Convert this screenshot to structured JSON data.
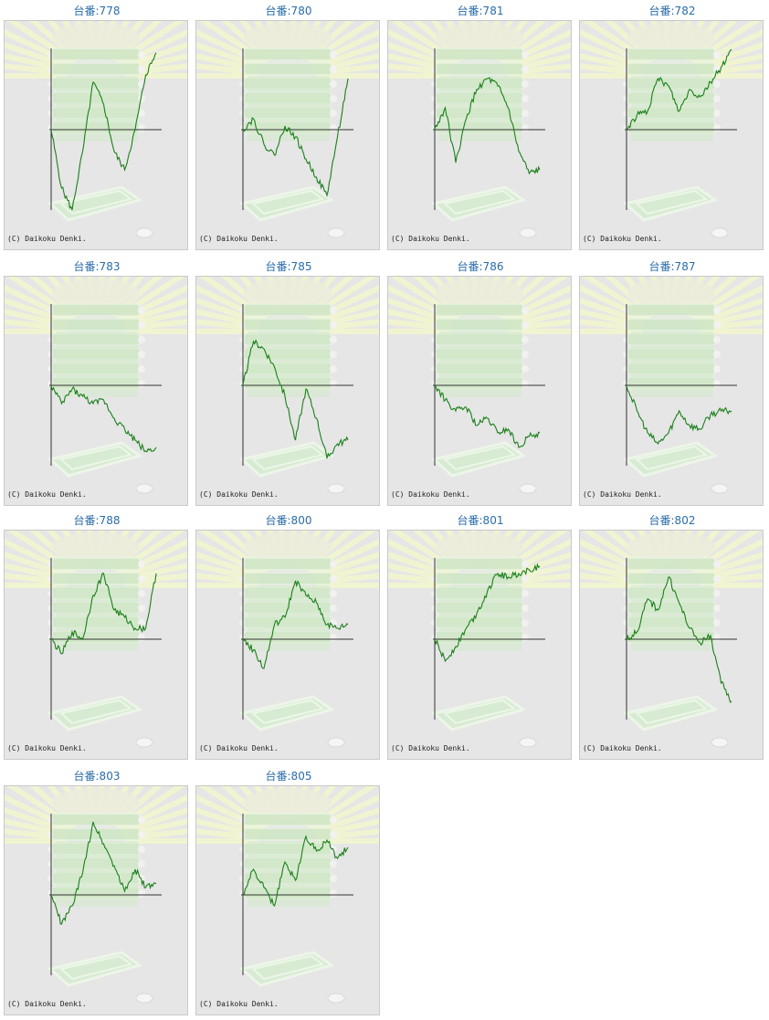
{
  "copyright": "(C) Daikoku Denki.",
  "colors": {
    "line": "#1a7f1a",
    "title": "#2a6ca8",
    "background": "#e6e6e6",
    "axis": "#333333"
  },
  "chart_data": [
    {
      "type": "line",
      "title": "台番:778",
      "x": [
        0,
        10,
        20,
        30,
        40,
        50,
        60,
        70,
        80,
        90,
        100
      ],
      "values": [
        0.0,
        -1.6,
        -2.2,
        -0.6,
        1.3,
        0.7,
        -0.6,
        -1.1,
        0.0,
        1.5,
        2.1
      ]
    },
    {
      "type": "line",
      "title": "台番:780",
      "x": [
        0,
        10,
        20,
        30,
        40,
        50,
        60,
        70,
        80,
        90,
        100
      ],
      "values": [
        0.0,
        0.3,
        -0.4,
        -0.7,
        0.1,
        -0.2,
        -0.8,
        -1.3,
        -1.8,
        -0.2,
        1.4
      ]
    },
    {
      "type": "line",
      "title": "台番:781",
      "x": [
        0,
        10,
        20,
        30,
        40,
        50,
        60,
        70,
        80,
        90,
        100
      ],
      "values": [
        0.0,
        0.6,
        -0.9,
        0.3,
        1.1,
        1.4,
        1.2,
        0.6,
        -0.6,
        -1.2,
        -1.1
      ]
    },
    {
      "type": "line",
      "title": "台番:782",
      "x": [
        0,
        10,
        20,
        30,
        40,
        50,
        60,
        70,
        80,
        90,
        100
      ],
      "values": [
        0.0,
        0.4,
        0.5,
        1.4,
        1.2,
        0.5,
        1.1,
        0.9,
        1.3,
        1.7,
        2.2
      ]
    },
    {
      "type": "line",
      "title": "台番:783",
      "x": [
        0,
        10,
        20,
        30,
        40,
        50,
        60,
        70,
        80,
        90,
        100
      ],
      "values": [
        0.0,
        -0.5,
        -0.1,
        -0.3,
        -0.5,
        -0.4,
        -0.9,
        -1.2,
        -1.5,
        -1.8,
        -1.7
      ]
    },
    {
      "type": "line",
      "title": "台番:785",
      "x": [
        0,
        10,
        20,
        30,
        40,
        50,
        60,
        70,
        80,
        90,
        100
      ],
      "values": [
        0.0,
        1.2,
        1.0,
        0.5,
        -0.3,
        -1.5,
        -0.1,
        -0.9,
        -2.0,
        -1.6,
        -1.5
      ]
    },
    {
      "type": "line",
      "title": "台番:786",
      "x": [
        0,
        10,
        20,
        30,
        40,
        50,
        60,
        70,
        80,
        90,
        100
      ],
      "values": [
        0.0,
        -0.4,
        -0.7,
        -0.6,
        -1.1,
        -0.9,
        -1.3,
        -1.2,
        -1.7,
        -1.4,
        -1.3
      ]
    },
    {
      "type": "line",
      "title": "台番:787",
      "x": [
        0,
        10,
        20,
        30,
        40,
        50,
        60,
        70,
        80,
        90,
        100
      ],
      "values": [
        0.0,
        -0.7,
        -1.3,
        -1.6,
        -1.3,
        -0.7,
        -1.1,
        -1.2,
        -0.8,
        -0.7,
        -0.7
      ]
    },
    {
      "type": "line",
      "title": "台番:788",
      "x": [
        0,
        10,
        20,
        30,
        40,
        50,
        60,
        70,
        80,
        90,
        100
      ],
      "values": [
        0.0,
        -0.4,
        0.2,
        0.0,
        1.2,
        1.8,
        0.8,
        0.6,
        0.3,
        0.3,
        1.8
      ]
    },
    {
      "type": "line",
      "title": "台番:800",
      "x": [
        0,
        10,
        20,
        30,
        40,
        50,
        60,
        70,
        80,
        90,
        100
      ],
      "values": [
        0.0,
        -0.3,
        -0.8,
        0.4,
        0.6,
        1.6,
        1.2,
        1.0,
        0.4,
        0.3,
        0.4
      ]
    },
    {
      "type": "line",
      "title": "台番:801",
      "x": [
        0,
        10,
        20,
        30,
        40,
        50,
        60,
        70,
        80,
        90,
        100
      ],
      "values": [
        0.0,
        -0.6,
        -0.2,
        0.3,
        0.7,
        1.3,
        1.8,
        1.7,
        1.8,
        1.9,
        2.0
      ]
    },
    {
      "type": "line",
      "title": "台番:802",
      "x": [
        0,
        10,
        20,
        30,
        40,
        50,
        60,
        70,
        80,
        90,
        100
      ],
      "values": [
        0.0,
        0.2,
        1.1,
        0.8,
        1.7,
        1.0,
        0.3,
        -0.1,
        0.1,
        -1.2,
        -1.7
      ]
    },
    {
      "type": "line",
      "title": "台番:803",
      "x": [
        0,
        10,
        20,
        30,
        40,
        50,
        60,
        70,
        80,
        90,
        100
      ],
      "values": [
        0.0,
        -0.8,
        -0.3,
        0.6,
        2.0,
        1.4,
        0.8,
        0.1,
        0.7,
        0.2,
        0.3
      ]
    },
    {
      "type": "line",
      "title": "台番:805",
      "x": [
        0,
        10,
        20,
        30,
        40,
        50,
        60,
        70,
        80,
        90,
        100
      ],
      "values": [
        0.0,
        0.7,
        0.2,
        -0.3,
        0.9,
        0.4,
        1.6,
        1.2,
        1.5,
        1.0,
        1.3
      ]
    }
  ]
}
